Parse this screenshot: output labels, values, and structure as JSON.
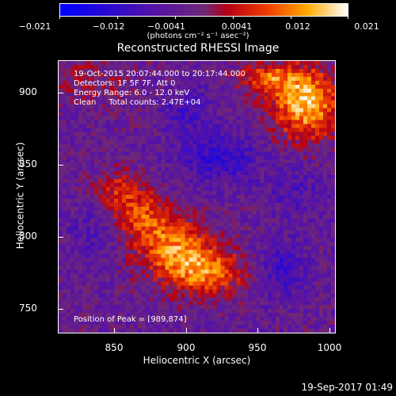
{
  "colorbar": {
    "ticks": [
      "−0.021",
      "−0.012",
      "−0.0041",
      "0.0041",
      "0.012",
      "0.021"
    ],
    "units": "(photons cm⁻² s⁻¹ asec⁻²)"
  },
  "title": "Reconstructed RHESSI Image",
  "info": {
    "line1": "19-Oct-2015 20:07:44.000 to 20:17:44.000",
    "line2": "Detectors: 1F 5F 7F, Att 0",
    "line3": "Energy Range: 6.0 - 12.0 keV",
    "line4": "Clean     Total counts: 2.47E+04",
    "peak": "Position of Peak = [989,874]"
  },
  "axes": {
    "xlabel": "Heliocentric X (arcsec)",
    "ylabel": "Heliocentric Y (arcsec)",
    "xticks": [
      "850",
      "900",
      "950",
      "1000"
    ],
    "yticks": [
      "900",
      "850",
      "800",
      "750"
    ]
  },
  "footer": "19-Sep-2017 01:49",
  "colors": {
    "background": "#000000",
    "low": "#1010ff",
    "mid": "#8a2be2",
    "high": "#ff6a00",
    "peak": "#ffffff"
  }
}
